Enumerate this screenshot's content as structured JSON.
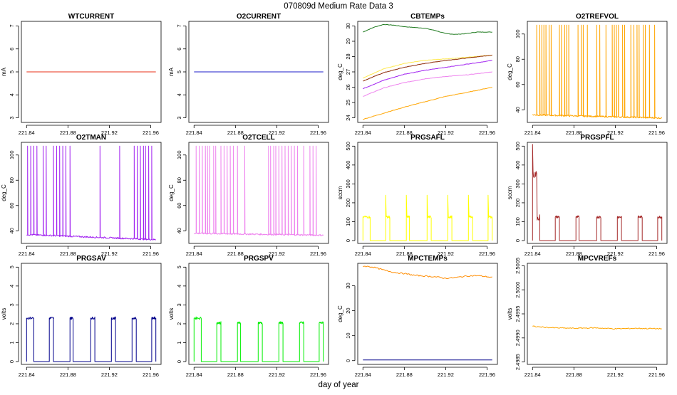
{
  "figure": {
    "title": "070809d   Medium Rate Data 3",
    "xlabel": "day of year"
  },
  "chart_data": [
    {
      "type": "line",
      "title": "WTCURRENT",
      "ylabel": "mA",
      "xlim": [
        221.835,
        221.97
      ],
      "ylim": [
        2.8,
        7.2
      ],
      "xticks": [
        221.84,
        221.88,
        221.92,
        221.96
      ],
      "xtick_labels": [
        "221.84",
        "221.88",
        "221.92",
        "221.96"
      ],
      "yticks": [
        3,
        4,
        5,
        6,
        7
      ],
      "ytick_labels": [
        "3",
        "4",
        "5",
        "6",
        "7"
      ],
      "series": [
        {
          "name": "WTCURRENT",
          "color": "#e8311a",
          "x": [
            221.84,
            221.965
          ],
          "y": [
            5,
            5
          ]
        }
      ]
    },
    {
      "type": "line",
      "title": "O2CURRENT",
      "ylabel": "mA",
      "xlim": [
        221.835,
        221.97
      ],
      "ylim": [
        2.8,
        7.2
      ],
      "xticks": [
        221.84,
        221.88,
        221.92,
        221.96
      ],
      "xtick_labels": [
        "221.84",
        "221.88",
        "221.92",
        "221.96"
      ],
      "yticks": [
        3,
        4,
        5,
        6,
        7
      ],
      "ytick_labels": [
        "3",
        "4",
        "5",
        "6",
        "7"
      ],
      "series": [
        {
          "name": "O2CURRENT",
          "color": "#1c1cc8",
          "x": [
            221.84,
            221.965
          ],
          "y": [
            5,
            5
          ]
        }
      ]
    },
    {
      "type": "line",
      "title": "CBTEMPs",
      "ylabel": "deg_C",
      "xlim": [
        221.835,
        221.97
      ],
      "ylim": [
        23.7,
        30.3
      ],
      "xticks": [
        221.84,
        221.88,
        221.92,
        221.96
      ],
      "xtick_labels": [
        "221.84",
        "221.88",
        "221.92",
        "221.96"
      ],
      "yticks": [
        24,
        25,
        26,
        27,
        28,
        29,
        30
      ],
      "ytick_labels": [
        "24",
        "25",
        "26",
        "27",
        "28",
        "29",
        "30"
      ],
      "series": [
        {
          "name": "green",
          "color": "#1f7a1f",
          "x": [
            221.84,
            221.85,
            221.86,
            221.87,
            221.88,
            221.89,
            221.9,
            221.91,
            221.92,
            221.93,
            221.94,
            221.95,
            221.965
          ],
          "y": [
            29.6,
            29.9,
            30.1,
            30.05,
            29.95,
            29.9,
            29.85,
            29.7,
            29.5,
            29.45,
            29.5,
            29.6,
            29.6
          ]
        },
        {
          "name": "yellow",
          "color": "#ffe94d",
          "x": [
            221.84,
            221.86,
            221.88,
            221.9,
            221.92,
            221.94,
            221.965
          ],
          "y": [
            26.6,
            27.2,
            27.55,
            27.75,
            27.85,
            27.95,
            28.1
          ]
        },
        {
          "name": "brown",
          "color": "#8b2500",
          "x": [
            221.84,
            221.86,
            221.88,
            221.9,
            221.92,
            221.94,
            221.965
          ],
          "y": [
            26.4,
            26.95,
            27.3,
            27.55,
            27.75,
            27.9,
            28.1
          ]
        },
        {
          "name": "purple",
          "color": "#a020f0",
          "x": [
            221.84,
            221.86,
            221.88,
            221.9,
            221.92,
            221.94,
            221.965
          ],
          "y": [
            25.9,
            26.45,
            26.85,
            27.1,
            27.3,
            27.5,
            27.75
          ]
        },
        {
          "name": "violet",
          "color": "#ee82ee",
          "x": [
            221.84,
            221.86,
            221.88,
            221.9,
            221.92,
            221.94,
            221.965
          ],
          "y": [
            25.4,
            25.95,
            26.3,
            26.55,
            26.7,
            26.8,
            27.0
          ]
        },
        {
          "name": "orange",
          "color": "#ffa500",
          "x": [
            221.84,
            221.86,
            221.88,
            221.9,
            221.92,
            221.94,
            221.965
          ],
          "y": [
            23.9,
            24.3,
            24.7,
            25.05,
            25.4,
            25.65,
            26.0
          ]
        }
      ]
    },
    {
      "type": "line",
      "title": "O2TREFVOL",
      "ylabel": "deg_C",
      "xlim": [
        221.835,
        221.97
      ],
      "ylim": [
        30,
        110
      ],
      "xticks": [
        221.84,
        221.88,
        221.92,
        221.96
      ],
      "xtick_labels": [
        "221.84",
        "221.88",
        "221.92",
        "221.96"
      ],
      "yticks": [
        40,
        60,
        80,
        100
      ],
      "ytick_labels": [
        "40",
        "60",
        "80",
        "100"
      ],
      "series": [
        {
          "name": "O2TREFVOL",
          "color": "#ffa500",
          "baseline": [
            36,
            33.5
          ],
          "spike_top": 107,
          "spikes": [
            221.844,
            221.847,
            221.849,
            221.851,
            221.853,
            221.856,
            221.858,
            221.866,
            221.868,
            221.871,
            221.873,
            221.875,
            221.884,
            221.887,
            221.889,
            221.893,
            221.902,
            221.905,
            221.911,
            221.917,
            221.919,
            221.921,
            221.923,
            221.927,
            221.929,
            221.935,
            221.938,
            221.941,
            221.943,
            221.947,
            221.949,
            221.953,
            221.958
          ]
        }
      ]
    },
    {
      "type": "line",
      "title": "O2TMAN",
      "ylabel": "deg_C",
      "xlim": [
        221.835,
        221.97
      ],
      "ylim": [
        30,
        110
      ],
      "xticks": [
        221.84,
        221.88,
        221.92,
        221.96
      ],
      "xtick_labels": [
        "221.84",
        "221.88",
        "221.92",
        "221.96"
      ],
      "yticks": [
        40,
        60,
        80,
        100
      ],
      "ytick_labels": [
        "40",
        "60",
        "80",
        "100"
      ],
      "series": [
        {
          "name": "O2TMAN",
          "color": "#a020f0",
          "baseline": [
            37,
            33
          ],
          "spike_top": 107,
          "spikes": [
            221.841,
            221.844,
            221.847,
            221.85,
            221.856,
            221.859,
            221.866,
            221.869,
            221.872,
            221.875,
            221.878,
            221.882,
            221.911,
            221.93,
            221.944,
            221.947,
            221.95,
            221.953,
            221.955,
            221.958,
            221.961
          ]
        }
      ]
    },
    {
      "type": "line",
      "title": "O2TCELL",
      "ylabel": "deg_C",
      "xlim": [
        221.835,
        221.97
      ],
      "ylim": [
        30,
        110
      ],
      "xticks": [
        221.84,
        221.88,
        221.92,
        221.96
      ],
      "xtick_labels": [
        "221.84",
        "221.88",
        "221.92",
        "221.96"
      ],
      "yticks": [
        40,
        60,
        80,
        100
      ],
      "ytick_labels": [
        "40",
        "60",
        "80",
        "100"
      ],
      "series": [
        {
          "name": "O2TCELL",
          "color": "#ee82ee",
          "baseline": [
            38,
            36.5
          ],
          "spike_top": 107,
          "spikes": [
            221.842,
            221.845,
            221.848,
            221.851,
            221.853,
            221.855,
            221.859,
            221.861,
            221.866,
            221.869,
            221.872,
            221.875,
            221.878,
            221.882,
            221.889,
            221.912,
            221.914,
            221.917,
            221.919,
            221.922,
            221.925,
            221.928,
            221.931,
            221.934,
            221.937,
            221.94,
            221.946,
            221.952,
            221.955,
            221.958
          ]
        }
      ]
    },
    {
      "type": "line",
      "title": "PRGSAFL",
      "ylabel": "sccm",
      "xlim": [
        221.835,
        221.97
      ],
      "ylim": [
        -15,
        520
      ],
      "xticks": [
        221.84,
        221.88,
        221.92,
        221.96
      ],
      "xtick_labels": [
        "221.84",
        "221.88",
        "221.92",
        "221.96"
      ],
      "yticks": [
        0,
        100,
        200,
        300,
        400,
        500
      ],
      "ytick_labels": [
        "0",
        "100",
        "200",
        "300",
        "400",
        "500"
      ],
      "series": [
        {
          "name": "PRGSAFL",
          "color": "#ffff00",
          "on_value": 125,
          "off_value": 0,
          "pulse_peak": 240,
          "on_intervals": [
            [
              221.84,
              221.847
            ],
            [
              221.862,
              221.866
            ],
            [
              221.882,
              221.885
            ],
            [
              221.902,
              221.906
            ],
            [
              221.922,
              221.926
            ],
            [
              221.942,
              221.946
            ],
            [
              221.961,
              221.965
            ]
          ]
        }
      ]
    },
    {
      "type": "line",
      "title": "PRGSPFL",
      "ylabel": "sccm",
      "xlim": [
        221.835,
        221.97
      ],
      "ylim": [
        -15,
        520
      ],
      "xticks": [
        221.84,
        221.88,
        221.92,
        221.96
      ],
      "xtick_labels": [
        "221.84",
        "221.88",
        "221.92",
        "221.96"
      ],
      "yticks": [
        0,
        100,
        200,
        300,
        400,
        500
      ],
      "ytick_labels": [
        "0",
        "100",
        "200",
        "300",
        "400",
        "500"
      ],
      "series": [
        {
          "name": "PRGSPFL",
          "color": "#a52a2a",
          "on_value": 125,
          "off_value": 0,
          "initial_peak": 510,
          "initial_level": 350,
          "on_intervals": [
            [
              221.84,
              221.847
            ],
            [
              221.862,
              221.866
            ],
            [
              221.882,
              221.885
            ],
            [
              221.902,
              221.906
            ],
            [
              221.922,
              221.926
            ],
            [
              221.942,
              221.946
            ],
            [
              221.961,
              221.965
            ]
          ]
        }
      ]
    },
    {
      "type": "line",
      "title": "PRGSAV",
      "ylabel": "volts",
      "xlim": [
        221.835,
        221.97
      ],
      "ylim": [
        -0.15,
        5.2
      ],
      "xticks": [
        221.84,
        221.88,
        221.92,
        221.96
      ],
      "xtick_labels": [
        "221.84",
        "221.88",
        "221.92",
        "221.96"
      ],
      "yticks": [
        0,
        1,
        2,
        3,
        4,
        5
      ],
      "ytick_labels": [
        "0",
        "1",
        "2",
        "3",
        "4",
        "5"
      ],
      "series": [
        {
          "name": "PRGSAV",
          "color": "#00008b",
          "on_value": 2.3,
          "off_value": 0,
          "on_intervals": [
            [
              221.84,
              221.847
            ],
            [
              221.862,
              221.866
            ],
            [
              221.882,
              221.885
            ],
            [
              221.902,
              221.906
            ],
            [
              221.922,
              221.926
            ],
            [
              221.942,
              221.946
            ],
            [
              221.961,
              221.965
            ]
          ]
        }
      ]
    },
    {
      "type": "line",
      "title": "PRGSPV",
      "ylabel": "volts",
      "xlim": [
        221.835,
        221.97
      ],
      "ylim": [
        -0.15,
        5.2
      ],
      "xticks": [
        221.84,
        221.88,
        221.92,
        221.96
      ],
      "xtick_labels": [
        "221.84",
        "221.88",
        "221.92",
        "221.96"
      ],
      "yticks": [
        0,
        1,
        2,
        3,
        4,
        5
      ],
      "ytick_labels": [
        "0",
        "1",
        "2",
        "3",
        "4",
        "5"
      ],
      "series": [
        {
          "name": "PRGSPV",
          "color": "#00ee00",
          "on_value": 2.05,
          "off_value": 0,
          "initial_level": 2.3,
          "on_intervals": [
            [
              221.84,
              221.847
            ],
            [
              221.862,
              221.866
            ],
            [
              221.882,
              221.885
            ],
            [
              221.902,
              221.906
            ],
            [
              221.922,
              221.926
            ],
            [
              221.942,
              221.946
            ],
            [
              221.961,
              221.965
            ]
          ]
        }
      ]
    },
    {
      "type": "line",
      "title": "MPCTEMPs",
      "ylabel": "deg_C",
      "xlim": [
        221.835,
        221.97
      ],
      "ylim": [
        -1.5,
        39
      ],
      "xticks": [
        221.84,
        221.88,
        221.92,
        221.96
      ],
      "xtick_labels": [
        "221.84",
        "221.88",
        "221.92",
        "221.96"
      ],
      "yticks": [
        0,
        10,
        20,
        30
      ],
      "ytick_labels": [
        "0",
        "10",
        "20",
        "30"
      ],
      "series": [
        {
          "name": "orange",
          "color": "#ff8c00",
          "x": [
            221.84,
            221.85,
            221.86,
            221.87,
            221.88,
            221.89,
            221.9,
            221.91,
            221.92,
            221.93,
            221.94,
            221.95,
            221.965
          ],
          "y": [
            37.9,
            37.5,
            36.3,
            35.4,
            34.9,
            34.2,
            33.9,
            33.6,
            33.0,
            33.3,
            33.9,
            34.1,
            33.4
          ]
        },
        {
          "name": "navy",
          "color": "#00008b",
          "x": [
            221.84,
            221.965
          ],
          "y": [
            0.3,
            0.3
          ]
        }
      ]
    },
    {
      "type": "line",
      "title": "MPCVREFs",
      "ylabel": "volts",
      "xlim": [
        221.835,
        221.97
      ],
      "ylim": [
        2.49845,
        2.50055
      ],
      "xticks": [
        221.84,
        221.88,
        221.92,
        221.96
      ],
      "xtick_labels": [
        "221.84",
        "221.88",
        "221.92",
        "221.96"
      ],
      "yticks": [
        2.4985,
        2.499,
        2.4995,
        2.5,
        2.5005
      ],
      "ytick_labels": [
        "2.4985",
        "2.4990",
        "2.4995",
        "2.5000",
        "2.5005"
      ],
      "series": [
        {
          "name": "MPCVREFs",
          "color": "#ffa500",
          "x": [
            221.84,
            221.86,
            221.88,
            221.9,
            221.92,
            221.94,
            221.965
          ],
          "y": [
            2.49924,
            2.49921,
            2.4992,
            2.49921,
            2.49919,
            2.4992,
            2.49919
          ]
        }
      ]
    }
  ]
}
